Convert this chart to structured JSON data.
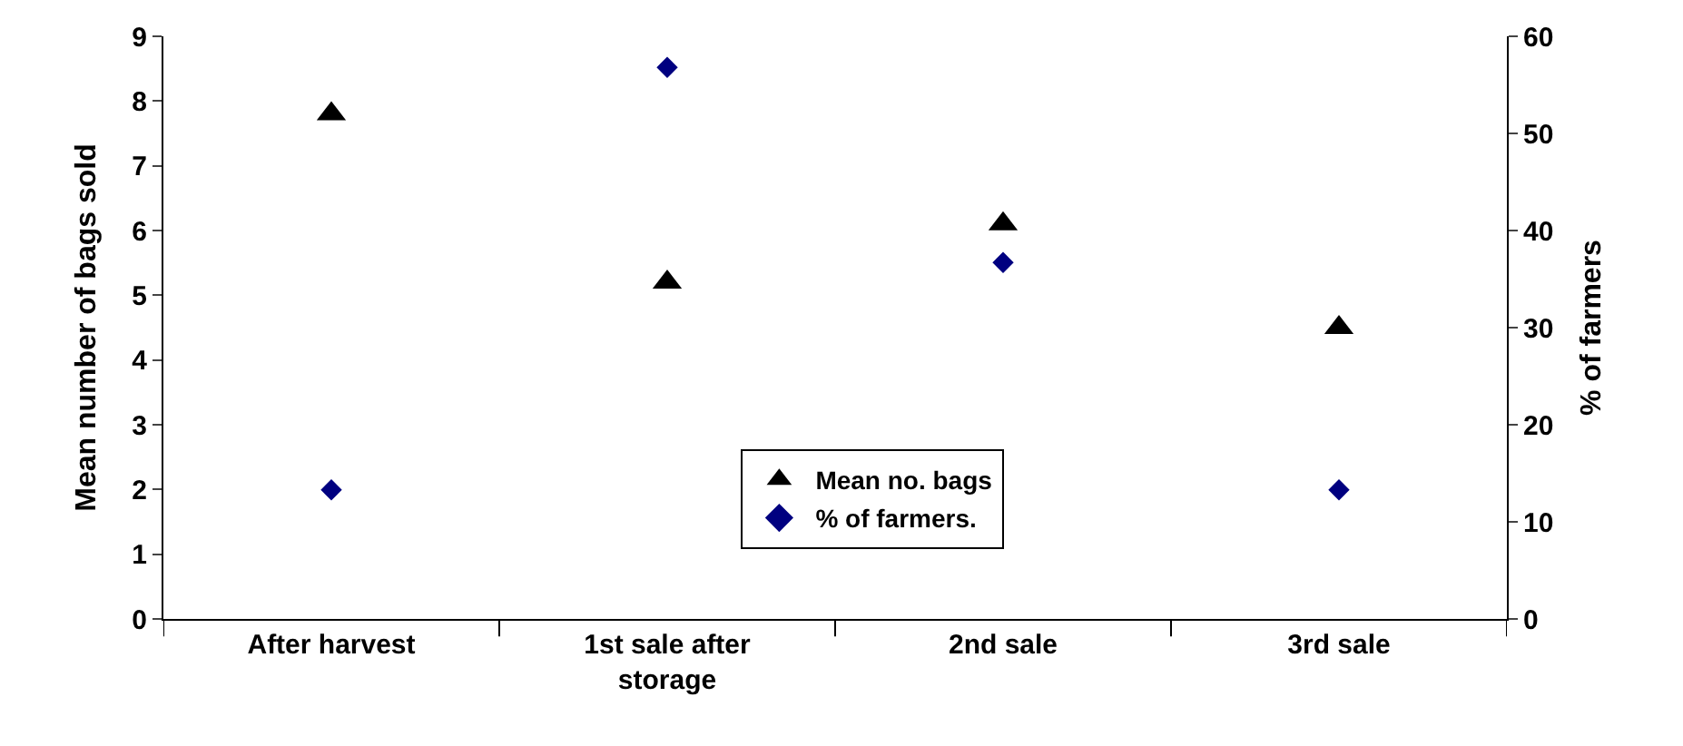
{
  "chart_data": {
    "type": "scatter",
    "categories": [
      "After harvest",
      "1st sale after storage",
      "2nd sale",
      "3rd sale"
    ],
    "ylabel": "Mean number of bags sold",
    "y2label": "% of farmers",
    "ylim": [
      0,
      9
    ],
    "yticks": [
      0,
      1,
      2,
      3,
      4,
      5,
      6,
      7,
      8,
      9
    ],
    "y2lim": [
      0,
      60
    ],
    "y2ticks": [
      0,
      10,
      20,
      30,
      40,
      50,
      60
    ],
    "legend": "bottom",
    "series": [
      {
        "name": "Mean no. bags",
        "color": "#000000",
        "marker": "triangle",
        "values": [
          7.8,
          5.2,
          6.1,
          4.5
        ]
      },
      {
        "name": "% of farmers.",
        "color": "#000080",
        "marker": "diamond",
        "axis": "y2",
        "values": [
          13.3,
          56.8,
          36.7,
          13.3
        ]
      }
    ]
  }
}
